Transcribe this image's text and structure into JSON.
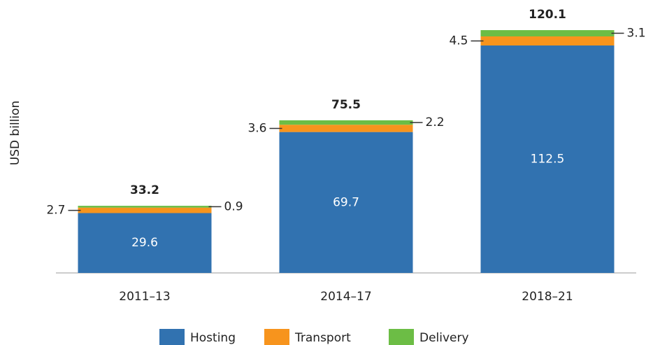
{
  "chart_data": {
    "type": "stacked_bar",
    "y_label": "USD billion",
    "categories": [
      "2011–13",
      "2014–17",
      "2018–21"
    ],
    "series": [
      {
        "name": "Hosting",
        "color": "#3172b0",
        "values": [
          29.6,
          69.7,
          112.5
        ]
      },
      {
        "name": "Transport",
        "color": "#f7941d",
        "values": [
          2.7,
          3.6,
          4.5
        ]
      },
      {
        "name": "Delivery",
        "color": "#6cbd45",
        "values": [
          0.9,
          2.2,
          3.1
        ]
      }
    ],
    "totals": [
      33.2,
      75.5,
      120.1
    ],
    "ylim": [
      0,
      135
    ]
  }
}
